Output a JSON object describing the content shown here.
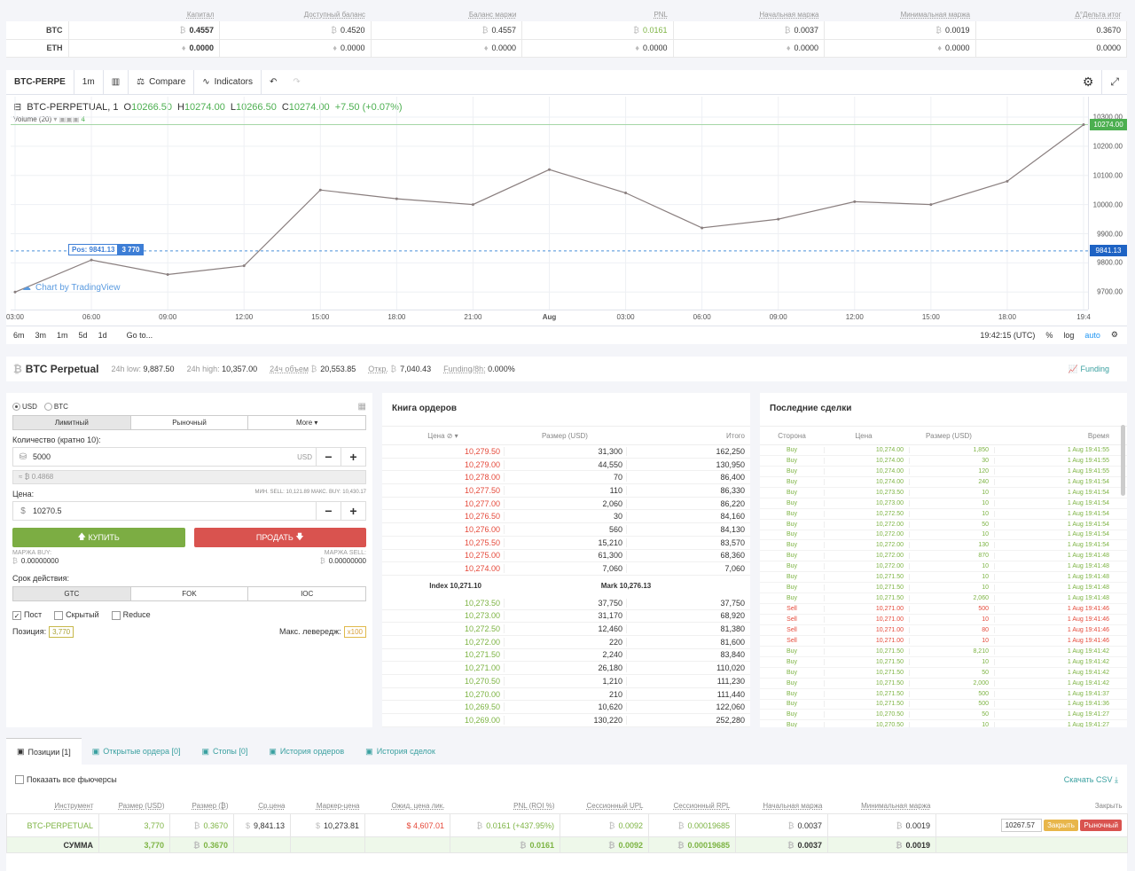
{
  "balance": {
    "headers": [
      "Капитал",
      "Доступный баланс",
      "Баланс маржи",
      "PNL",
      "Начальная маржа",
      "Минимальная маржа",
      "Δ°Дельта итог"
    ],
    "rows": [
      {
        "cur": "BTC",
        "cells": [
          "0.4557",
          "0.4520",
          "0.4557",
          "0.0161",
          "0.0037",
          "0.0019",
          "0.3670"
        ]
      },
      {
        "cur": "ETH",
        "cells": [
          "0.0000",
          "0.0000",
          "0.0000",
          "0.0000",
          "0.0000",
          "0.0000",
          "0.0000"
        ]
      }
    ]
  },
  "chart_toolbar": {
    "symbol": "BTC-PERPE",
    "interval": "1m",
    "compare": "Compare",
    "indicators": "Indicators"
  },
  "chart_legend": {
    "name": "BTC-PERPETUAL, 1",
    "o_label": "O",
    "o": "10266.50",
    "h_label": "H",
    "h": "10274.00",
    "l_label": "L",
    "l": "10266.50",
    "c_label": "C",
    "c": "10274.00",
    "change": "+7.50 (+0.07%)",
    "volume": "Volume (20)",
    "volume_val": "4"
  },
  "chart_data": {
    "type": "line",
    "x": [
      "03:00",
      "06:00",
      "09:00",
      "12:00",
      "15:00",
      "18:00",
      "21:00",
      "Aug",
      "03:00",
      "06:00",
      "09:00",
      "12:00",
      "15:00",
      "18:00",
      "19:4"
    ],
    "y": [
      9700,
      9810,
      9760,
      9790,
      10050,
      10020,
      10000,
      10120,
      10040,
      9920,
      9950,
      10010,
      10000,
      10080,
      10274
    ],
    "yticks": [
      "10300.00",
      "10200.00",
      "10100.00",
      "10000.00",
      "9900.00",
      "9800.00",
      "9700.00"
    ],
    "ylim": [
      9640,
      10370
    ],
    "last_price": "10274.00",
    "pos_price": "9841.13",
    "pos_label": "Pos: 9841.13",
    "pos_size": "3 770"
  },
  "chart_bottom": {
    "ranges": [
      "6m",
      "3m",
      "1m",
      "5d",
      "1d"
    ],
    "goto": "Go to...",
    "time": "19:42:15 (UTC)",
    "pct": "%",
    "log": "log",
    "auto": "auto",
    "tv": "Chart by TradingView"
  },
  "instrument": {
    "title": "BTC Perpetual",
    "low_label": "24h low:",
    "low": "9,887.50",
    "high_label": "24h high:",
    "high": "10,357.00",
    "vol_label": "24ч объем",
    "vol": "20,553.85",
    "oi_label": "Откр.",
    "oi": "7,040.43",
    "funding_label": "Funding/8h:",
    "funding": "0.000%",
    "funding_link": "Funding"
  },
  "form": {
    "usd": "USD",
    "btc": "BTC",
    "types": [
      "Лимитный",
      "Рыночный",
      "More ▾"
    ],
    "qty_label": "Количество (кратно 10):",
    "qty": "5000",
    "qty_unit": "USD",
    "btc_equiv": "≈ ₿ 0.4868",
    "price_label": "Цена:",
    "price_hint": "МИН. SELL: 10,121.89  МАКС. BUY: 10,430.17",
    "price": "10270.5",
    "buy": "КУПИТЬ",
    "sell": "ПРОДАТЬ",
    "marg_buy_label": "МАРЖА BUY:",
    "marg_sell_label": "МАРЖА SELL:",
    "marg_buy": "0.00000000",
    "marg_sell": "0.00000000",
    "tif_label": "Срок действия:",
    "tif": [
      "GTC",
      "FOK",
      "IOC"
    ],
    "post": "Пост",
    "hidden": "Скрытый",
    "reduce": "Reduce",
    "pos_label": "Позиция:",
    "pos_val": "3,770",
    "lev_label": "Макс. левередж:",
    "lev_val": "x100"
  },
  "book": {
    "title": "Книга ордеров",
    "headers": [
      "Цена",
      "Размер (USD)",
      "Итого"
    ],
    "asks": [
      [
        "10,279.50",
        "31,300",
        "162,250"
      ],
      [
        "10,279.00",
        "44,550",
        "130,950"
      ],
      [
        "10,278.00",
        "70",
        "86,400"
      ],
      [
        "10,277.50",
        "110",
        "86,330"
      ],
      [
        "10,277.00",
        "2,060",
        "86,220"
      ],
      [
        "10,276.50",
        "30",
        "84,160"
      ],
      [
        "10,276.00",
        "560",
        "84,130"
      ],
      [
        "10,275.50",
        "15,210",
        "83,570"
      ],
      [
        "10,275.00",
        "61,300",
        "68,360"
      ],
      [
        "10,274.00",
        "7,060",
        "7,060"
      ]
    ],
    "index": "Index 10,271.10",
    "mark": "Mark  10,276.13",
    "bids": [
      [
        "10,273.50",
        "37,750",
        "37,750"
      ],
      [
        "10,273.00",
        "31,170",
        "68,920"
      ],
      [
        "10,272.50",
        "12,460",
        "81,380"
      ],
      [
        "10,272.00",
        "220",
        "81,600"
      ],
      [
        "10,271.50",
        "2,240",
        "83,840"
      ],
      [
        "10,271.00",
        "26,180",
        "110,020"
      ],
      [
        "10,270.50",
        "1,210",
        "111,230"
      ],
      [
        "10,270.00",
        "210",
        "111,440"
      ],
      [
        "10,269.50",
        "10,620",
        "122,060"
      ],
      [
        "10,269.00",
        "130,220",
        "252,280"
      ]
    ]
  },
  "trades": {
    "title": "Последние сделки",
    "headers": [
      "Сторона",
      "Цена",
      "Размер (USD)",
      "Время"
    ],
    "rows": [
      [
        "Buy",
        "10,274.00",
        "1,850",
        "1 Aug 19:41:55"
      ],
      [
        "Buy",
        "10,274.00",
        "30",
        "1 Aug 19:41:55"
      ],
      [
        "Buy",
        "10,274.00",
        "120",
        "1 Aug 19:41:55"
      ],
      [
        "Buy",
        "10,274.00",
        "240",
        "1 Aug 19:41:54"
      ],
      [
        "Buy",
        "10,273.50",
        "10",
        "1 Aug 19:41:54"
      ],
      [
        "Buy",
        "10,273.00",
        "10",
        "1 Aug 19:41:54"
      ],
      [
        "Buy",
        "10,272.50",
        "10",
        "1 Aug 19:41:54"
      ],
      [
        "Buy",
        "10,272.00",
        "50",
        "1 Aug 19:41:54"
      ],
      [
        "Buy",
        "10,272.00",
        "10",
        "1 Aug 19:41:54"
      ],
      [
        "Buy",
        "10,272.00",
        "130",
        "1 Aug 19:41:54"
      ],
      [
        "Buy",
        "10,272.00",
        "870",
        "1 Aug 19:41:48"
      ],
      [
        "Buy",
        "10,272.00",
        "10",
        "1 Aug 19:41:48"
      ],
      [
        "Buy",
        "10,271.50",
        "10",
        "1 Aug 19:41:48"
      ],
      [
        "Buy",
        "10,271.50",
        "10",
        "1 Aug 19:41:48"
      ],
      [
        "Buy",
        "10,271.50",
        "2,060",
        "1 Aug 19:41:48"
      ],
      [
        "Sell",
        "10,271.00",
        "500",
        "1 Aug 19:41:46"
      ],
      [
        "Sell",
        "10,271.00",
        "10",
        "1 Aug 19:41:46"
      ],
      [
        "Sell",
        "10,271.00",
        "80",
        "1 Aug 19:41:46"
      ],
      [
        "Sell",
        "10,271.00",
        "10",
        "1 Aug 19:41:46"
      ],
      [
        "Buy",
        "10,271.50",
        "8,210",
        "1 Aug 19:41:42"
      ],
      [
        "Buy",
        "10,271.50",
        "10",
        "1 Aug 19:41:42"
      ],
      [
        "Buy",
        "10,271.50",
        "50",
        "1 Aug 19:41:42"
      ],
      [
        "Buy",
        "10,271.50",
        "2,000",
        "1 Aug 19:41:42"
      ],
      [
        "Buy",
        "10,271.50",
        "500",
        "1 Aug 19:41:37"
      ],
      [
        "Buy",
        "10,271.50",
        "500",
        "1 Aug 19:41:36"
      ],
      [
        "Buy",
        "10,270.50",
        "50",
        "1 Aug 19:41:27"
      ],
      [
        "Buy",
        "10,270.50",
        "10",
        "1 Aug 19:41:27"
      ]
    ]
  },
  "positions": {
    "tabs": [
      "Позиции [1]",
      "Открытые ордера [0]",
      "Стопы [0]",
      "История ордеров",
      "История сделок"
    ],
    "show_all": "Показать все фьючерсы",
    "csv": "Скачать CSV",
    "headers": [
      "Инструмент",
      "Размер (USD)",
      "Размер (₿)",
      "Ср.цена",
      "Маркер-цена",
      "Ожид. цена лик.",
      "PNL (ROI %)",
      "Сессионный UPL",
      "Сессионный RPL",
      "Начальная маржа",
      "Минимальная маржа",
      "Закрыть"
    ],
    "row": [
      "BTC-PERPETUAL",
      "3,770",
      "0.3670",
      "9,841.13",
      "10,273.81",
      "4,607.01",
      "0.0161 (+437.95%)",
      "0.0092",
      "0.00019685",
      "0.0037",
      "0.0019"
    ],
    "close_price": "10267.57",
    "close_btn": "Закрыть",
    "market_btn": "Рыночный",
    "sum": [
      "СУММА",
      "3,770",
      "0.3670",
      "",
      "",
      "",
      "0.0161",
      "0.0092",
      "0.00019685",
      "0.0037",
      "0.0019"
    ]
  }
}
